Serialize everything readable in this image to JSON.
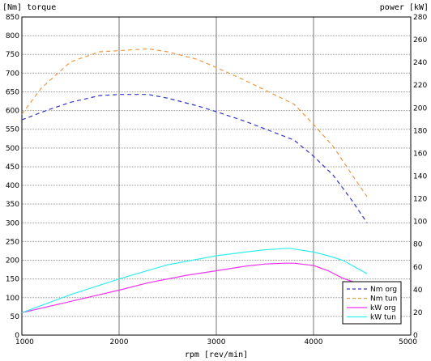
{
  "chart_data": {
    "type": "line",
    "title": "",
    "y_left_label": "[Nm] torque",
    "y_right_label": "power [kW]",
    "x_label": "rpm [rev/min]",
    "xlim": [
      1000,
      5000
    ],
    "ylim_left": [
      0,
      850
    ],
    "ylim_right": [
      0,
      280
    ],
    "x_ticks": [
      "1000",
      "2000",
      "3000",
      "4000",
      "5000"
    ],
    "y_left_ticks": [
      "0",
      "50",
      "100",
      "150",
      "200",
      "250",
      "300",
      "350",
      "400",
      "450",
      "500",
      "550",
      "600",
      "650",
      "700",
      "750",
      "800",
      "850"
    ],
    "y_right_ticks": [
      "0",
      "20",
      "40",
      "60",
      "80",
      "100",
      "120",
      "140",
      "160",
      "180",
      "200",
      "220",
      "240",
      "260",
      "280"
    ],
    "grid": true,
    "legend_position": "bottom-right",
    "series": [
      {
        "name": "Nm org",
        "axis": "left",
        "color": "#3333cc",
        "dash": "dashed",
        "x": [
          1000,
          1250,
          1500,
          1800,
          2000,
          2300,
          2500,
          2800,
          3000,
          3300,
          3500,
          3800,
          4000,
          4200,
          4400,
          4550
        ],
        "y": [
          575,
          600,
          622,
          640,
          643,
          643,
          633,
          613,
          597,
          571,
          551,
          521,
          478,
          428,
          358,
          300
        ]
      },
      {
        "name": "Nm tun",
        "axis": "left",
        "color": "#ee9944",
        "dash": "dashed",
        "x": [
          1000,
          1200,
          1500,
          1800,
          2000,
          2300,
          2500,
          2800,
          3000,
          3300,
          3500,
          3800,
          4000,
          4200,
          4400,
          4550
        ],
        "y": [
          590,
          660,
          730,
          757,
          760,
          765,
          757,
          737,
          715,
          680,
          655,
          617,
          563,
          505,
          427,
          370
        ]
      },
      {
        "name": "kW org",
        "axis": "left",
        "color": "#ee33ee",
        "dash": "solid",
        "x": [
          1000,
          1500,
          2000,
          2300,
          2700,
          3000,
          3300,
          3500,
          3700,
          3800,
          4000,
          4150,
          4300,
          4550
        ],
        "y": [
          60,
          90,
          120,
          140,
          160,
          172,
          184,
          190,
          192,
          192,
          186,
          172,
          152,
          130
        ]
      },
      {
        "name": "kW tun",
        "axis": "left",
        "color": "#33eeee",
        "dash": "solid",
        "x": [
          1000,
          1500,
          2000,
          2500,
          3000,
          3300,
          3500,
          3750,
          4000,
          4150,
          4300,
          4550
        ],
        "y": [
          60,
          108,
          150,
          188,
          212,
          222,
          228,
          232,
          222,
          212,
          200,
          164
        ]
      }
    ]
  }
}
